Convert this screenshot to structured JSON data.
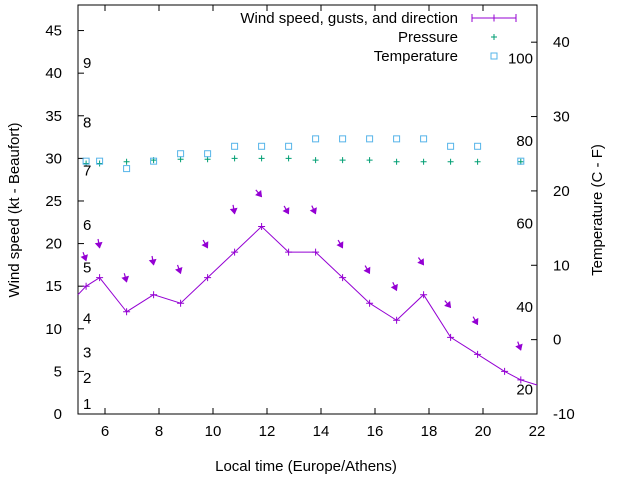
{
  "chart_data": {
    "type": "line",
    "xlabel": "Local time (Europe/Athens)",
    "ylabel": "Wind speed (kt - Beaufort)",
    "y2label": "Temperature (C - F)",
    "xlim": [
      5,
      22
    ],
    "ylim": [
      0,
      48
    ],
    "y2lim": [
      -10,
      45
    ],
    "x_ticks": [
      "6",
      "8",
      "10",
      "12",
      "14",
      "16",
      "18",
      "20",
      "22"
    ],
    "y_ticks": [
      "0",
      "5",
      "10",
      "15",
      "20",
      "25",
      "30",
      "35",
      "40",
      "45"
    ],
    "y2_ticks": [
      "-10",
      "0",
      "10",
      "20",
      "30",
      "40"
    ],
    "beaufort_labels": [
      {
        "text": "1",
        "y": 1.2
      },
      {
        "text": "2",
        "y": 4.2
      },
      {
        "text": "3",
        "y": 7.2
      },
      {
        "text": "4",
        "y": 11.2
      },
      {
        "text": "5",
        "y": 17.2
      },
      {
        "text": "6",
        "y": 22.2
      },
      {
        "text": "7",
        "y": 28.6
      },
      {
        "text": "8",
        "y": 34.2
      },
      {
        "text": "9",
        "y": 41.2
      }
    ],
    "fahrenheit_labels": [
      {
        "text": "20",
        "y2": -6.7
      },
      {
        "text": "40",
        "y2": 4.4
      },
      {
        "text": "60",
        "y2": 15.6
      },
      {
        "text": "80",
        "y2": 26.7
      },
      {
        "text": "100",
        "y2": 37.8
      }
    ],
    "legend": {
      "position": "top-right",
      "entries": [
        "Wind speed, gusts, and direction",
        "Pressure",
        "Temperature"
      ]
    },
    "colors": {
      "wind": "#9400d3",
      "pressure": "#009e73",
      "temperature": "#56b4e9"
    },
    "series": [
      {
        "name": "Wind speed, gusts, and direction",
        "x": [
          5,
          5.3,
          5.8,
          6.8,
          7.8,
          8.8,
          9.8,
          10.8,
          11.8,
          12.8,
          13.8,
          14.8,
          15.8,
          16.8,
          17.8,
          18.8,
          19.8,
          20.8,
          21.4,
          22
        ],
        "values": [
          14,
          15,
          16,
          12,
          14,
          13,
          16,
          19,
          22,
          19,
          19,
          16,
          13,
          11,
          14,
          9,
          7,
          5,
          4,
          3.4
        ]
      },
      {
        "name": "Pressure",
        "x": [
          5.3,
          5.8,
          6.8,
          7.8,
          8.8,
          9.8,
          10.8,
          11.8,
          12.8,
          13.8,
          14.8,
          15.8,
          16.8,
          17.8,
          18.8,
          19.8,
          21.4
        ],
        "values": [
          29.4,
          29.4,
          29.6,
          29.8,
          29.9,
          29.9,
          30,
          30,
          30,
          29.8,
          29.8,
          29.8,
          29.6,
          29.6,
          29.6,
          29.6,
          29.6
        ]
      },
      {
        "name": "Temperature",
        "x": [
          5.3,
          5.8,
          6.8,
          7.8,
          8.8,
          9.8,
          10.8,
          11.8,
          12.8,
          13.8,
          14.8,
          15.8,
          16.8,
          17.8,
          18.8,
          19.8,
          21.4
        ],
        "values": [
          24,
          24,
          23,
          24,
          25,
          25,
          26,
          26,
          26,
          27,
          27,
          27,
          27,
          27,
          26,
          26,
          24
        ]
      }
    ],
    "gusts": {
      "x": [
        5.3,
        5.8,
        6.8,
        7.8,
        8.8,
        9.8,
        10.8,
        11.8,
        12.8,
        13.8,
        14.8,
        15.8,
        16.8,
        17.8,
        18.8,
        19.8,
        21.4
      ],
      "values": [
        18,
        19.5,
        15.5,
        17.5,
        16.5,
        19.5,
        23.5,
        25.5,
        23.5,
        23.5,
        19.5,
        16.5,
        14.5,
        17.5,
        12.5,
        10.5,
        7.5
      ],
      "direction_deg": [
        20,
        10,
        15,
        10,
        20,
        30,
        10,
        40,
        30,
        25,
        30,
        30,
        25,
        35,
        40,
        30,
        20
      ]
    }
  }
}
